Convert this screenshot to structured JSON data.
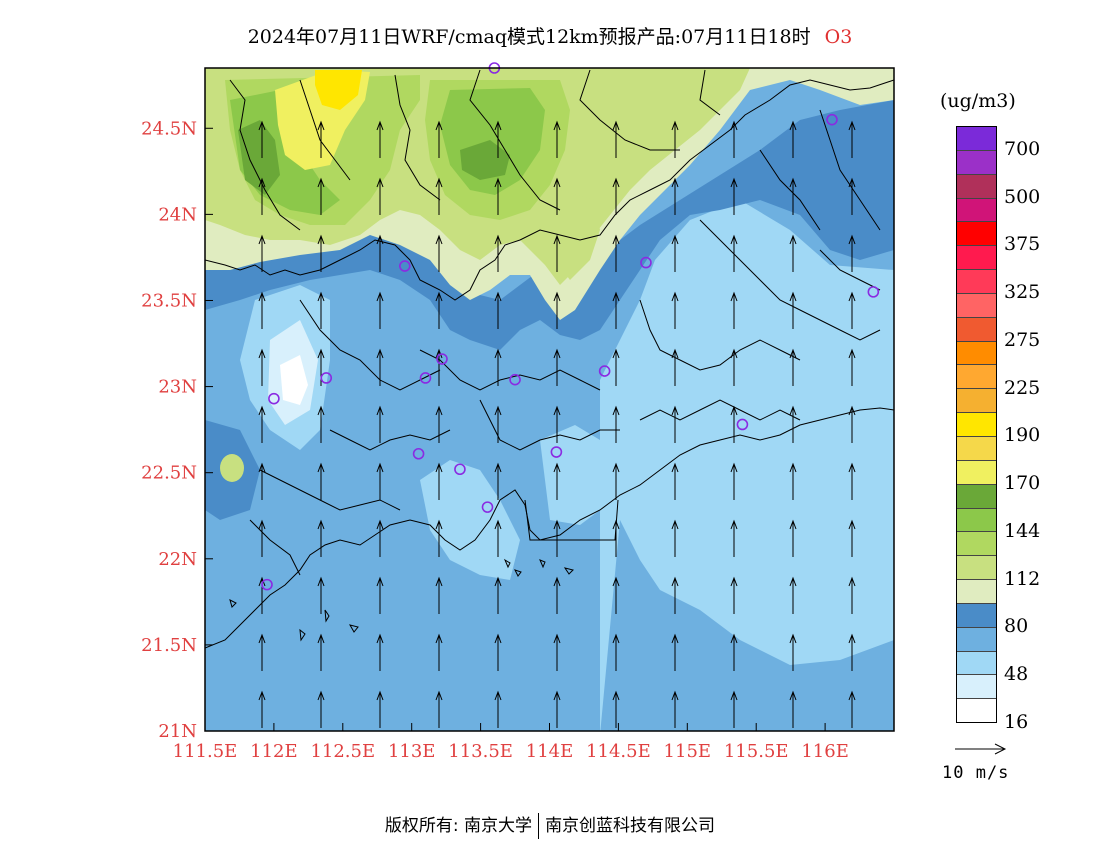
{
  "title": {
    "main": "2024年07月11日WRF/cmaq模式12km预报产品:07月11日18时",
    "species": "O3"
  },
  "axes": {
    "lon_ticks": [
      "111.5E",
      "112E",
      "112.5E",
      "113E",
      "113.5E",
      "114E",
      "114.5E",
      "115E",
      "115.5E",
      "116E"
    ],
    "lat_ticks": [
      "21N",
      "21.5N",
      "22N",
      "22.5N",
      "23N",
      "23.5N",
      "24N",
      "24.5N"
    ],
    "lon_range": [
      111.5,
      116.5
    ],
    "lat_range": [
      21.0,
      24.85
    ]
  },
  "legend": {
    "units": "(ug/m3)",
    "labels": [
      "700",
      "500",
      "375",
      "325",
      "275",
      "225",
      "190",
      "170",
      "144",
      "112",
      "80",
      "48",
      "16"
    ],
    "colors": [
      "#7b2ad9",
      "#9b30c8",
      "#b0305a",
      "#d01478",
      "#ff0000",
      "#ff1a4e",
      "#ff3a58",
      "#ff6464",
      "#f05a30",
      "#ff8c00",
      "#ffa830",
      "#f5b030",
      "#ffe600",
      "#f5d84a",
      "#f0f060",
      "#6aa838",
      "#8cc84a",
      "#b0d860",
      "#c8e080",
      "#e0ecc0",
      "#4a8cc8",
      "#6eb0e0",
      "#a0d8f5",
      "#d8f0fc",
      "#ffffff"
    ]
  },
  "wind_reference": {
    "label": "10 m/s"
  },
  "footer": {
    "left": "版权所有: 南京大学",
    "right": "南京创蓝科技有限公司"
  },
  "stations": [
    {
      "lon": 113.6,
      "lat": 24.85
    },
    {
      "lon": 116.05,
      "lat": 24.55
    },
    {
      "lon": 112.95,
      "lat": 23.7
    },
    {
      "lon": 114.7,
      "lat": 23.72
    },
    {
      "lon": 116.35,
      "lat": 23.55
    },
    {
      "lon": 112.38,
      "lat": 23.05
    },
    {
      "lon": 113.1,
      "lat": 23.05
    },
    {
      "lon": 113.22,
      "lat": 23.16
    },
    {
      "lon": 113.75,
      "lat": 23.04
    },
    {
      "lon": 114.4,
      "lat": 23.09
    },
    {
      "lon": 112.0,
      "lat": 22.93
    },
    {
      "lon": 115.4,
      "lat": 22.78
    },
    {
      "lon": 113.05,
      "lat": 22.61
    },
    {
      "lon": 113.35,
      "lat": 22.52
    },
    {
      "lon": 114.05,
      "lat": 22.62
    },
    {
      "lon": 113.55,
      "lat": 22.3
    },
    {
      "lon": 111.95,
      "lat": 21.85
    }
  ]
}
